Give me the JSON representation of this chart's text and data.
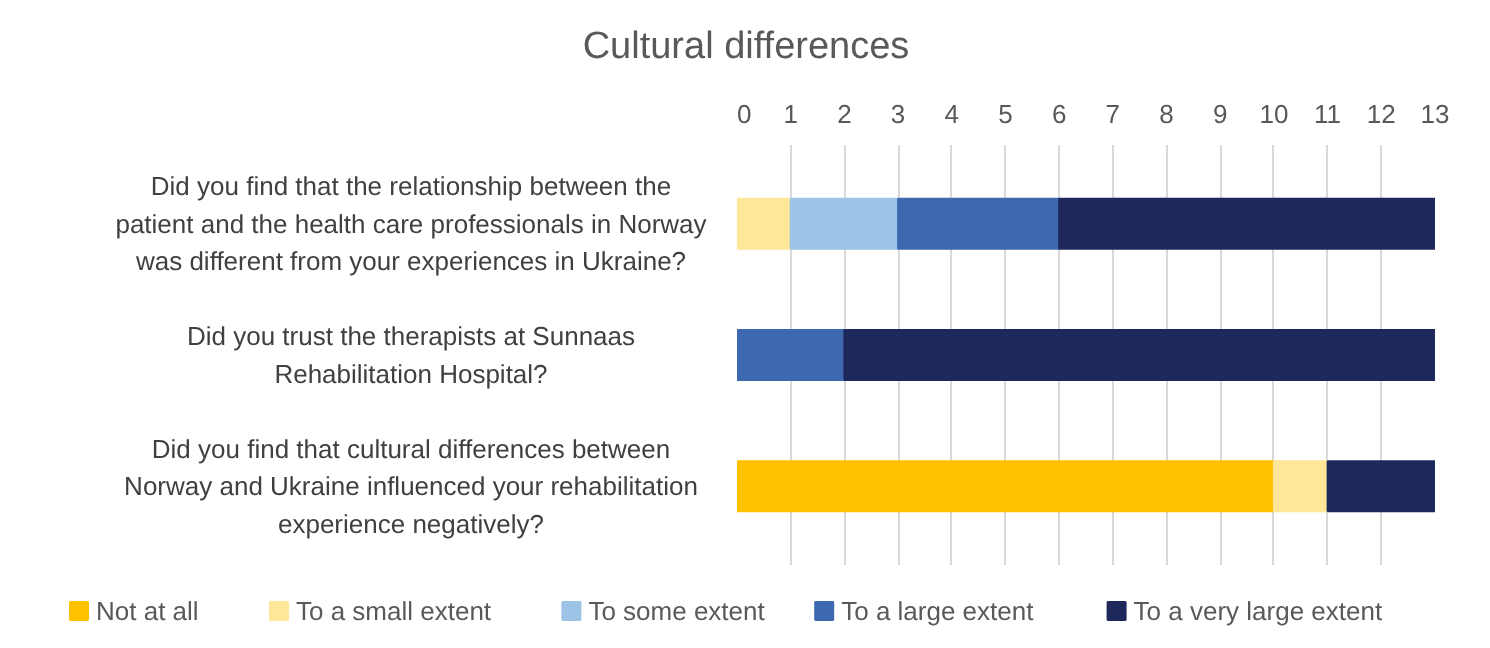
{
  "chart_data": {
    "type": "bar",
    "orientation": "horizontal",
    "stacked": true,
    "title": "Cultural differences",
    "categories": [
      "Did you find that the relationship between the patient and the health care professionals in Norway was different from your experiences in Ukraine?",
      "Did you trust the therapists at Sunnaas Rehabilitation Hospital?",
      "Did you find that cultural differences between Norway and Ukraine influenced your rehabilitation experience negatively?"
    ],
    "series": [
      {
        "name": "Not at all",
        "color": "#ffc000",
        "values": [
          null,
          null,
          10
        ]
      },
      {
        "name": "To a small extent",
        "color": "#ffe699",
        "values": [
          1,
          null,
          1
        ]
      },
      {
        "name": "To some extent",
        "color": "#9dc3e6",
        "values": [
          2,
          null,
          null
        ]
      },
      {
        "name": "To a large extent",
        "color": "#3e69b1",
        "values": [
          3,
          2,
          null
        ]
      },
      {
        "name": "To a very large extent",
        "color": "#1f285c",
        "values": [
          7,
          11,
          2
        ]
      }
    ],
    "xlim": [
      0,
      13
    ],
    "xticks": [
      0,
      1,
      2,
      3,
      4,
      5,
      6,
      7,
      8,
      9,
      10,
      11,
      12,
      13
    ],
    "grid": "x",
    "legend": "bottom"
  }
}
